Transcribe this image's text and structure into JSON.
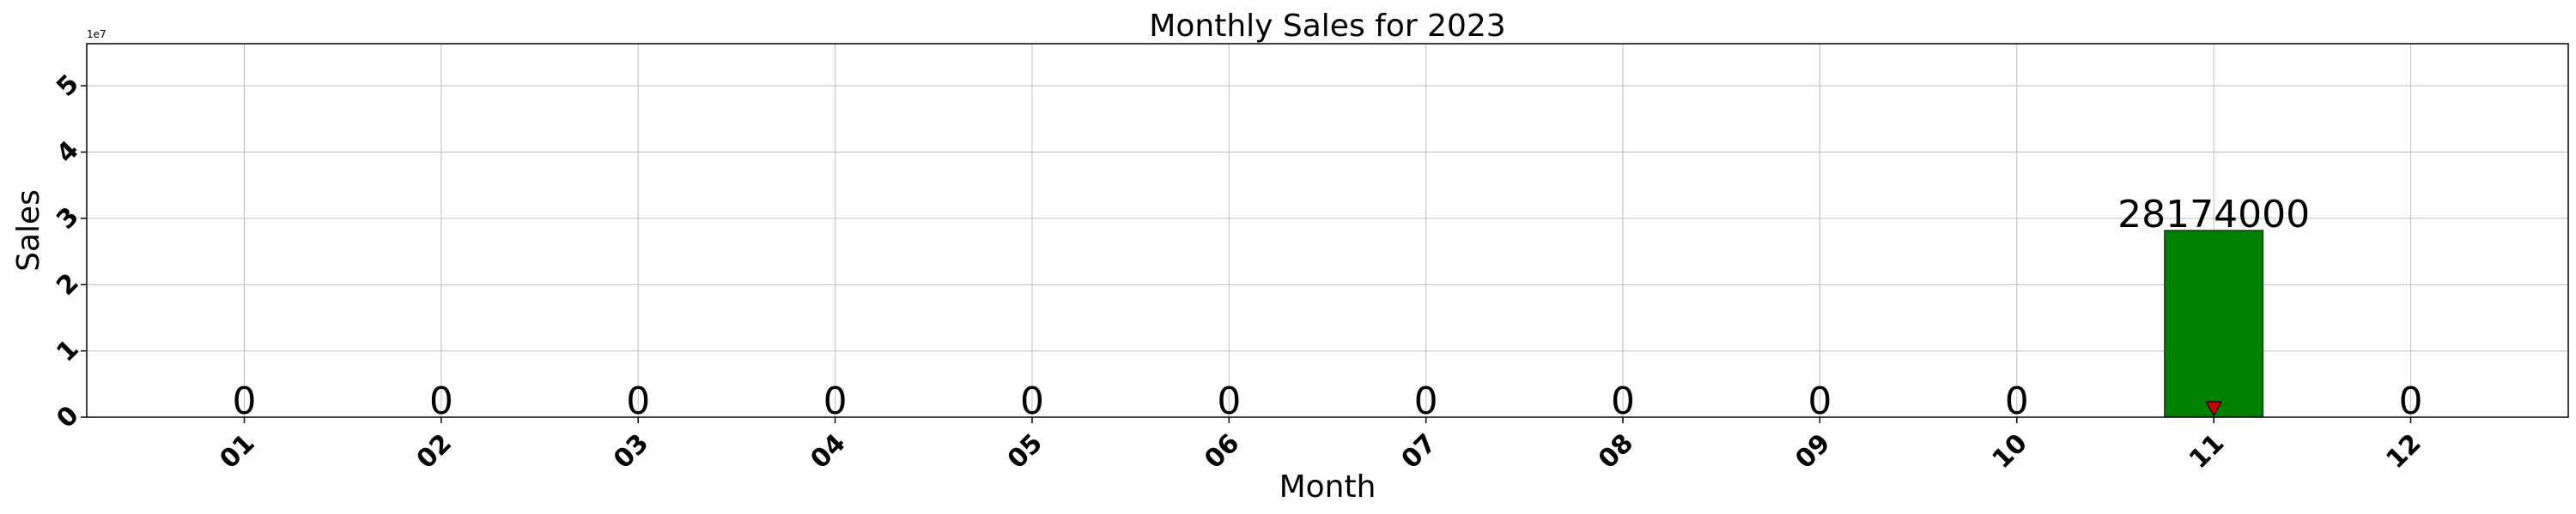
{
  "chart_data": {
    "type": "bar",
    "title": "Monthly Sales for 2023",
    "xlabel": "Month",
    "ylabel": "Sales",
    "categories": [
      "01",
      "02",
      "03",
      "04",
      "05",
      "06",
      "07",
      "08",
      "09",
      "10",
      "11",
      "12"
    ],
    "values": [
      0,
      0,
      0,
      0,
      0,
      0,
      0,
      0,
      0,
      0,
      28174000,
      0
    ],
    "data_labels": [
      "0",
      "0",
      "0",
      "0",
      "0",
      "0",
      "0",
      "0",
      "0",
      "0",
      "28174000",
      "0"
    ],
    "ylim": [
      0,
      56348000
    ],
    "y_ticks": [
      0,
      10000000,
      20000000,
      30000000,
      40000000,
      50000000
    ],
    "y_tick_labels": [
      "0",
      "1",
      "2",
      "3",
      "4",
      "5"
    ],
    "y_offset_label": "1e7",
    "grid": true,
    "bar_color": "#008000",
    "bar_edge_color": "#000000",
    "marker": {
      "category": "11",
      "value": 0,
      "shape": "triangle-down",
      "color": "#cc0000"
    }
  }
}
